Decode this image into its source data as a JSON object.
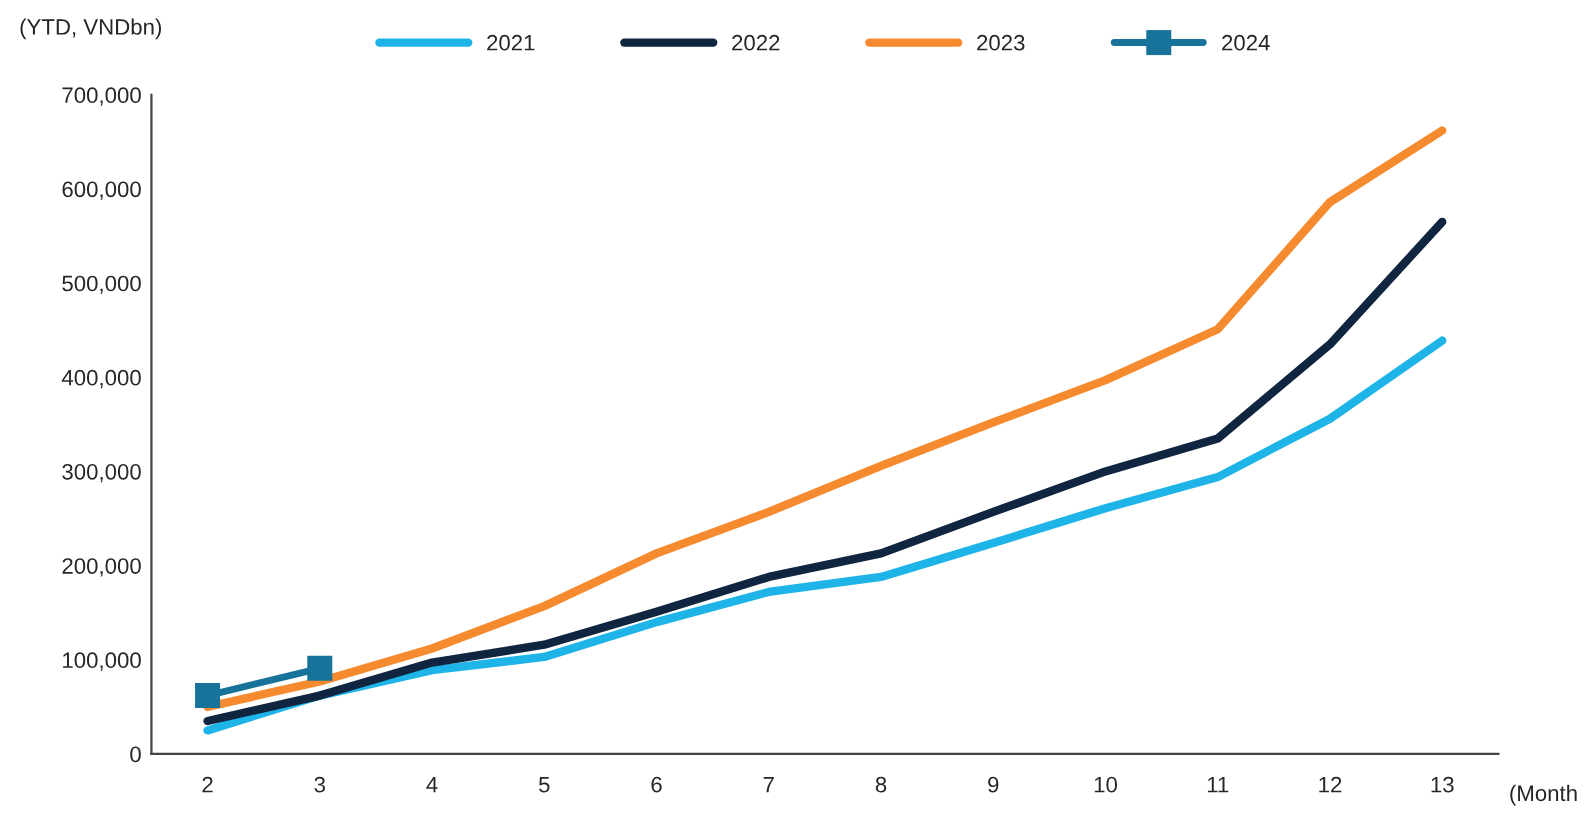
{
  "chart_data": {
    "type": "line",
    "ylabel": "(YTD, VNDbn)",
    "xlabel": "(Month",
    "categories": [
      "2",
      "3",
      "4",
      "5",
      "6",
      "7",
      "8",
      "9",
      "10",
      "11",
      "12",
      "13"
    ],
    "series": [
      {
        "name": "2021",
        "color": "#1fb4e8",
        "marker": "none",
        "values": [
          25000,
          62000,
          89000,
          103000,
          140000,
          172000,
          188000,
          224000,
          261000,
          294000,
          356000,
          439000
        ]
      },
      {
        "name": "2022",
        "color": "#10253f",
        "marker": "none",
        "values": [
          35000,
          62000,
          97000,
          116000,
          151000,
          188000,
          213000,
          257000,
          300000,
          335000,
          435000,
          565000
        ]
      },
      {
        "name": "2023",
        "color": "#f58a2e",
        "marker": "none",
        "values": [
          50000,
          77000,
          112000,
          157000,
          213000,
          257000,
          306000,
          352000,
          397000,
          451000,
          586000,
          662000
        ]
      },
      {
        "name": "2024",
        "color": "#17739a",
        "marker": "square",
        "values": [
          62000,
          91000,
          null,
          null,
          null,
          null,
          null,
          null,
          null,
          null,
          null,
          null
        ]
      }
    ],
    "ylim": [
      0,
      700000
    ],
    "yticks": [
      {
        "value": 0,
        "label": "0"
      },
      {
        "value": 100000,
        "label": "100,000"
      },
      {
        "value": 200000,
        "label": "200,000"
      },
      {
        "value": 300000,
        "label": "300,000"
      },
      {
        "value": 400000,
        "label": "400,000"
      },
      {
        "value": 500000,
        "label": "500,000"
      },
      {
        "value": 600000,
        "label": "600,000"
      },
      {
        "value": 700000,
        "label": "700,000"
      }
    ],
    "grid": false,
    "legend": "top",
    "line_style": "solid"
  }
}
